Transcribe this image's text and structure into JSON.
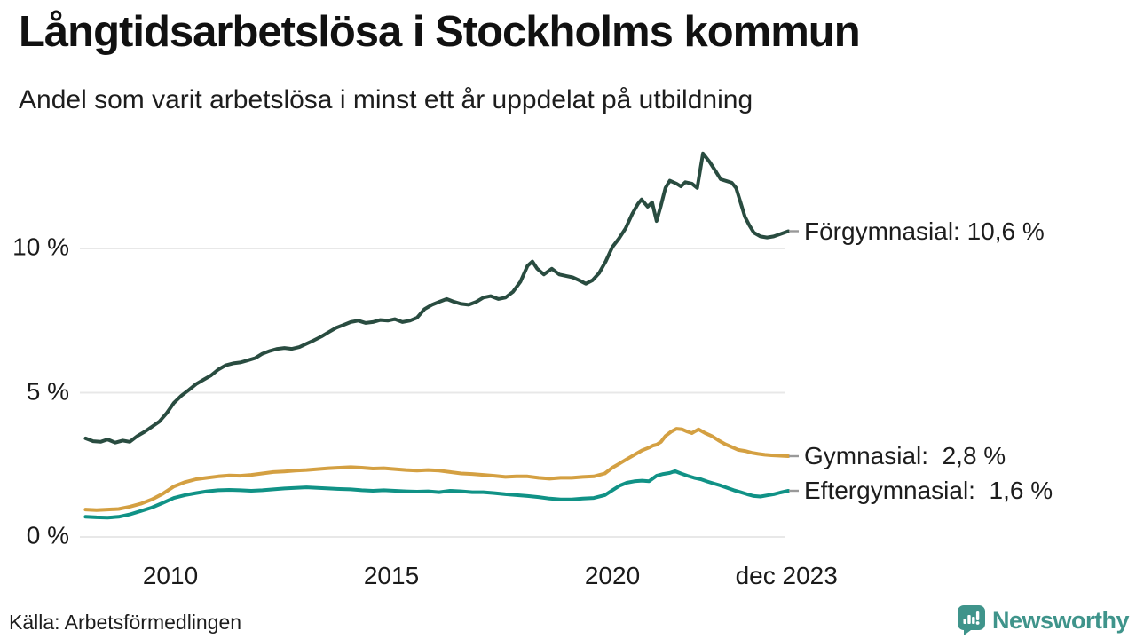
{
  "header": {
    "title": "Långtidsarbetslösa i Stockholms kommun",
    "subtitle": "Andel som varit arbetslösa i minst ett år uppdelat på utbildning"
  },
  "footer": {
    "source": "Källa: Arbetsförmedlingen",
    "brand": "Newsworthy"
  },
  "colors": {
    "forgymnasial": "#294c40",
    "gymnasial": "#d4a042",
    "eftergymnasial": "#109286",
    "grid": "#e8e8e8",
    "connector": "#999999",
    "text": "#1a1a1a",
    "brand_teal": "#3f948b"
  },
  "chart_data": {
    "type": "line",
    "title": "Långtidsarbetslösa i Stockholms kommun",
    "subtitle": "Andel som varit arbetslösa i minst ett år uppdelat på utbildning",
    "unit": "%",
    "grid": "horizontal",
    "legend_position": "right-end-labels",
    "x_axis": {
      "range": [
        2008.05,
        2023.98
      ],
      "ticks": [
        {
          "label": "2010",
          "year": 2010
        },
        {
          "label": "2015",
          "year": 2015
        },
        {
          "label": "2020",
          "year": 2020
        },
        {
          "label": "dec 2023",
          "year": 2023.94
        }
      ]
    },
    "y_axis": {
      "range": [
        0,
        13.5
      ],
      "ticks": [
        {
          "label": "0 %",
          "value": 0
        },
        {
          "label": "5 %",
          "value": 5
        },
        {
          "label": "10 %",
          "value": 10
        }
      ]
    },
    "series": [
      {
        "name": "Förgymnasial",
        "end_label": "Förgymnasial: 10,6 %",
        "last_value": 10.6,
        "color": "#294c40",
        "points": [
          [
            2008.08,
            3.42
          ],
          [
            2008.25,
            3.32
          ],
          [
            2008.42,
            3.3
          ],
          [
            2008.58,
            3.38
          ],
          [
            2008.75,
            3.27
          ],
          [
            2008.92,
            3.34
          ],
          [
            2009.08,
            3.3
          ],
          [
            2009.25,
            3.5
          ],
          [
            2009.42,
            3.65
          ],
          [
            2009.58,
            3.82
          ],
          [
            2009.75,
            4.0
          ],
          [
            2009.92,
            4.3
          ],
          [
            2010.08,
            4.65
          ],
          [
            2010.25,
            4.9
          ],
          [
            2010.42,
            5.1
          ],
          [
            2010.58,
            5.3
          ],
          [
            2010.75,
            5.45
          ],
          [
            2010.92,
            5.6
          ],
          [
            2011.08,
            5.8
          ],
          [
            2011.25,
            5.95
          ],
          [
            2011.42,
            6.02
          ],
          [
            2011.58,
            6.05
          ],
          [
            2011.75,
            6.12
          ],
          [
            2011.92,
            6.2
          ],
          [
            2012.08,
            6.35
          ],
          [
            2012.25,
            6.45
          ],
          [
            2012.42,
            6.52
          ],
          [
            2012.58,
            6.55
          ],
          [
            2012.75,
            6.52
          ],
          [
            2012.92,
            6.58
          ],
          [
            2013.08,
            6.7
          ],
          [
            2013.25,
            6.82
          ],
          [
            2013.42,
            6.95
          ],
          [
            2013.58,
            7.1
          ],
          [
            2013.75,
            7.25
          ],
          [
            2013.92,
            7.35
          ],
          [
            2014.08,
            7.45
          ],
          [
            2014.25,
            7.5
          ],
          [
            2014.42,
            7.42
          ],
          [
            2014.58,
            7.45
          ],
          [
            2014.75,
            7.52
          ],
          [
            2014.92,
            7.5
          ],
          [
            2015.08,
            7.55
          ],
          [
            2015.25,
            7.45
          ],
          [
            2015.42,
            7.5
          ],
          [
            2015.58,
            7.6
          ],
          [
            2015.75,
            7.9
          ],
          [
            2015.92,
            8.05
          ],
          [
            2016.08,
            8.15
          ],
          [
            2016.25,
            8.25
          ],
          [
            2016.42,
            8.15
          ],
          [
            2016.58,
            8.08
          ],
          [
            2016.75,
            8.05
          ],
          [
            2016.92,
            8.15
          ],
          [
            2017.08,
            8.3
          ],
          [
            2017.25,
            8.35
          ],
          [
            2017.42,
            8.25
          ],
          [
            2017.58,
            8.3
          ],
          [
            2017.75,
            8.5
          ],
          [
            2017.92,
            8.85
          ],
          [
            2018.08,
            9.4
          ],
          [
            2018.19,
            9.55
          ],
          [
            2018.3,
            9.3
          ],
          [
            2018.45,
            9.1
          ],
          [
            2018.63,
            9.3
          ],
          [
            2018.8,
            9.1
          ],
          [
            2018.95,
            9.05
          ],
          [
            2019.1,
            9.0
          ],
          [
            2019.25,
            8.9
          ],
          [
            2019.4,
            8.78
          ],
          [
            2019.55,
            8.9
          ],
          [
            2019.7,
            9.15
          ],
          [
            2019.85,
            9.55
          ],
          [
            2020.0,
            10.05
          ],
          [
            2020.15,
            10.35
          ],
          [
            2020.3,
            10.7
          ],
          [
            2020.45,
            11.2
          ],
          [
            2020.58,
            11.55
          ],
          [
            2020.66,
            11.7
          ],
          [
            2020.8,
            11.45
          ],
          [
            2020.9,
            11.6
          ],
          [
            2021.0,
            10.95
          ],
          [
            2021.1,
            11.5
          ],
          [
            2021.2,
            12.1
          ],
          [
            2021.3,
            12.35
          ],
          [
            2021.45,
            12.25
          ],
          [
            2021.55,
            12.15
          ],
          [
            2021.65,
            12.3
          ],
          [
            2021.8,
            12.25
          ],
          [
            2021.92,
            12.1
          ],
          [
            2022.05,
            13.3
          ],
          [
            2022.2,
            13.0
          ],
          [
            2022.35,
            12.65
          ],
          [
            2022.45,
            12.4
          ],
          [
            2022.6,
            12.33
          ],
          [
            2022.7,
            12.28
          ],
          [
            2022.8,
            12.1
          ],
          [
            2022.9,
            11.6
          ],
          [
            2023.0,
            11.1
          ],
          [
            2023.1,
            10.8
          ],
          [
            2023.2,
            10.55
          ],
          [
            2023.35,
            10.42
          ],
          [
            2023.5,
            10.38
          ],
          [
            2023.65,
            10.42
          ],
          [
            2023.8,
            10.5
          ],
          [
            2023.98,
            10.6
          ]
        ]
      },
      {
        "name": "Gymnasial",
        "end_label": "Gymnasial:  2,8 %",
        "last_value": 2.8,
        "color": "#d4a042",
        "points": [
          [
            2008.08,
            0.95
          ],
          [
            2008.33,
            0.93
          ],
          [
            2008.58,
            0.95
          ],
          [
            2008.83,
            0.97
          ],
          [
            2009.08,
            1.05
          ],
          [
            2009.33,
            1.15
          ],
          [
            2009.58,
            1.3
          ],
          [
            2009.83,
            1.5
          ],
          [
            2010.08,
            1.75
          ],
          [
            2010.33,
            1.9
          ],
          [
            2010.58,
            2.0
          ],
          [
            2010.83,
            2.05
          ],
          [
            2011.08,
            2.1
          ],
          [
            2011.33,
            2.13
          ],
          [
            2011.58,
            2.12
          ],
          [
            2011.83,
            2.15
          ],
          [
            2012.08,
            2.2
          ],
          [
            2012.33,
            2.25
          ],
          [
            2012.58,
            2.27
          ],
          [
            2012.83,
            2.3
          ],
          [
            2013.08,
            2.32
          ],
          [
            2013.33,
            2.35
          ],
          [
            2013.58,
            2.38
          ],
          [
            2013.83,
            2.4
          ],
          [
            2014.08,
            2.42
          ],
          [
            2014.33,
            2.4
          ],
          [
            2014.58,
            2.37
          ],
          [
            2014.83,
            2.38
          ],
          [
            2015.08,
            2.35
          ],
          [
            2015.33,
            2.32
          ],
          [
            2015.58,
            2.3
          ],
          [
            2015.83,
            2.32
          ],
          [
            2016.08,
            2.3
          ],
          [
            2016.33,
            2.25
          ],
          [
            2016.58,
            2.2
          ],
          [
            2016.83,
            2.18
          ],
          [
            2017.08,
            2.15
          ],
          [
            2017.33,
            2.12
          ],
          [
            2017.58,
            2.08
          ],
          [
            2017.83,
            2.1
          ],
          [
            2018.08,
            2.1
          ],
          [
            2018.33,
            2.05
          ],
          [
            2018.58,
            2.02
          ],
          [
            2018.83,
            2.05
          ],
          [
            2019.08,
            2.05
          ],
          [
            2019.33,
            2.08
          ],
          [
            2019.58,
            2.1
          ],
          [
            2019.83,
            2.2
          ],
          [
            2020.0,
            2.4
          ],
          [
            2020.17,
            2.55
          ],
          [
            2020.33,
            2.7
          ],
          [
            2020.5,
            2.85
          ],
          [
            2020.67,
            3.0
          ],
          [
            2020.83,
            3.1
          ],
          [
            2020.92,
            3.17
          ],
          [
            2021.0,
            3.2
          ],
          [
            2021.1,
            3.3
          ],
          [
            2021.2,
            3.5
          ],
          [
            2021.33,
            3.65
          ],
          [
            2021.45,
            3.75
          ],
          [
            2021.58,
            3.73
          ],
          [
            2021.7,
            3.65
          ],
          [
            2021.8,
            3.6
          ],
          [
            2021.88,
            3.67
          ],
          [
            2021.95,
            3.73
          ],
          [
            2022.1,
            3.6
          ],
          [
            2022.25,
            3.5
          ],
          [
            2022.4,
            3.35
          ],
          [
            2022.55,
            3.22
          ],
          [
            2022.7,
            3.12
          ],
          [
            2022.85,
            3.02
          ],
          [
            2023.0,
            2.98
          ],
          [
            2023.15,
            2.92
          ],
          [
            2023.3,
            2.88
          ],
          [
            2023.45,
            2.85
          ],
          [
            2023.6,
            2.83
          ],
          [
            2023.75,
            2.82
          ],
          [
            2023.98,
            2.8
          ]
        ]
      },
      {
        "name": "Eftergymnasial",
        "end_label": "Eftergymnasial:  1,6 %",
        "last_value": 1.6,
        "color": "#109286",
        "points": [
          [
            2008.08,
            0.7
          ],
          [
            2008.33,
            0.68
          ],
          [
            2008.58,
            0.67
          ],
          [
            2008.83,
            0.7
          ],
          [
            2009.08,
            0.78
          ],
          [
            2009.33,
            0.9
          ],
          [
            2009.58,
            1.02
          ],
          [
            2009.83,
            1.18
          ],
          [
            2010.08,
            1.35
          ],
          [
            2010.33,
            1.45
          ],
          [
            2010.58,
            1.52
          ],
          [
            2010.83,
            1.58
          ],
          [
            2011.08,
            1.62
          ],
          [
            2011.33,
            1.63
          ],
          [
            2011.58,
            1.62
          ],
          [
            2011.83,
            1.6
          ],
          [
            2012.08,
            1.62
          ],
          [
            2012.33,
            1.65
          ],
          [
            2012.58,
            1.68
          ],
          [
            2012.83,
            1.7
          ],
          [
            2013.08,
            1.72
          ],
          [
            2013.33,
            1.7
          ],
          [
            2013.58,
            1.68
          ],
          [
            2013.83,
            1.66
          ],
          [
            2014.08,
            1.65
          ],
          [
            2014.33,
            1.62
          ],
          [
            2014.58,
            1.6
          ],
          [
            2014.83,
            1.62
          ],
          [
            2015.08,
            1.6
          ],
          [
            2015.33,
            1.58
          ],
          [
            2015.58,
            1.57
          ],
          [
            2015.83,
            1.58
          ],
          [
            2016.08,
            1.55
          ],
          [
            2016.33,
            1.6
          ],
          [
            2016.58,
            1.58
          ],
          [
            2016.83,
            1.55
          ],
          [
            2017.08,
            1.55
          ],
          [
            2017.33,
            1.52
          ],
          [
            2017.58,
            1.48
          ],
          [
            2017.83,
            1.45
          ],
          [
            2018.08,
            1.42
          ],
          [
            2018.33,
            1.38
          ],
          [
            2018.58,
            1.33
          ],
          [
            2018.83,
            1.3
          ],
          [
            2019.08,
            1.3
          ],
          [
            2019.33,
            1.33
          ],
          [
            2019.58,
            1.35
          ],
          [
            2019.83,
            1.45
          ],
          [
            2020.0,
            1.62
          ],
          [
            2020.17,
            1.78
          ],
          [
            2020.33,
            1.88
          ],
          [
            2020.5,
            1.93
          ],
          [
            2020.67,
            1.95
          ],
          [
            2020.83,
            1.93
          ],
          [
            2021.0,
            2.12
          ],
          [
            2021.15,
            2.18
          ],
          [
            2021.3,
            2.22
          ],
          [
            2021.42,
            2.28
          ],
          [
            2021.55,
            2.2
          ],
          [
            2021.7,
            2.12
          ],
          [
            2021.85,
            2.05
          ],
          [
            2022.0,
            2.0
          ],
          [
            2022.15,
            1.92
          ],
          [
            2022.3,
            1.85
          ],
          [
            2022.45,
            1.78
          ],
          [
            2022.6,
            1.7
          ],
          [
            2022.75,
            1.62
          ],
          [
            2022.9,
            1.55
          ],
          [
            2023.05,
            1.48
          ],
          [
            2023.2,
            1.42
          ],
          [
            2023.35,
            1.4
          ],
          [
            2023.5,
            1.44
          ],
          [
            2023.65,
            1.48
          ],
          [
            2023.8,
            1.54
          ],
          [
            2023.98,
            1.6
          ]
        ]
      }
    ]
  }
}
